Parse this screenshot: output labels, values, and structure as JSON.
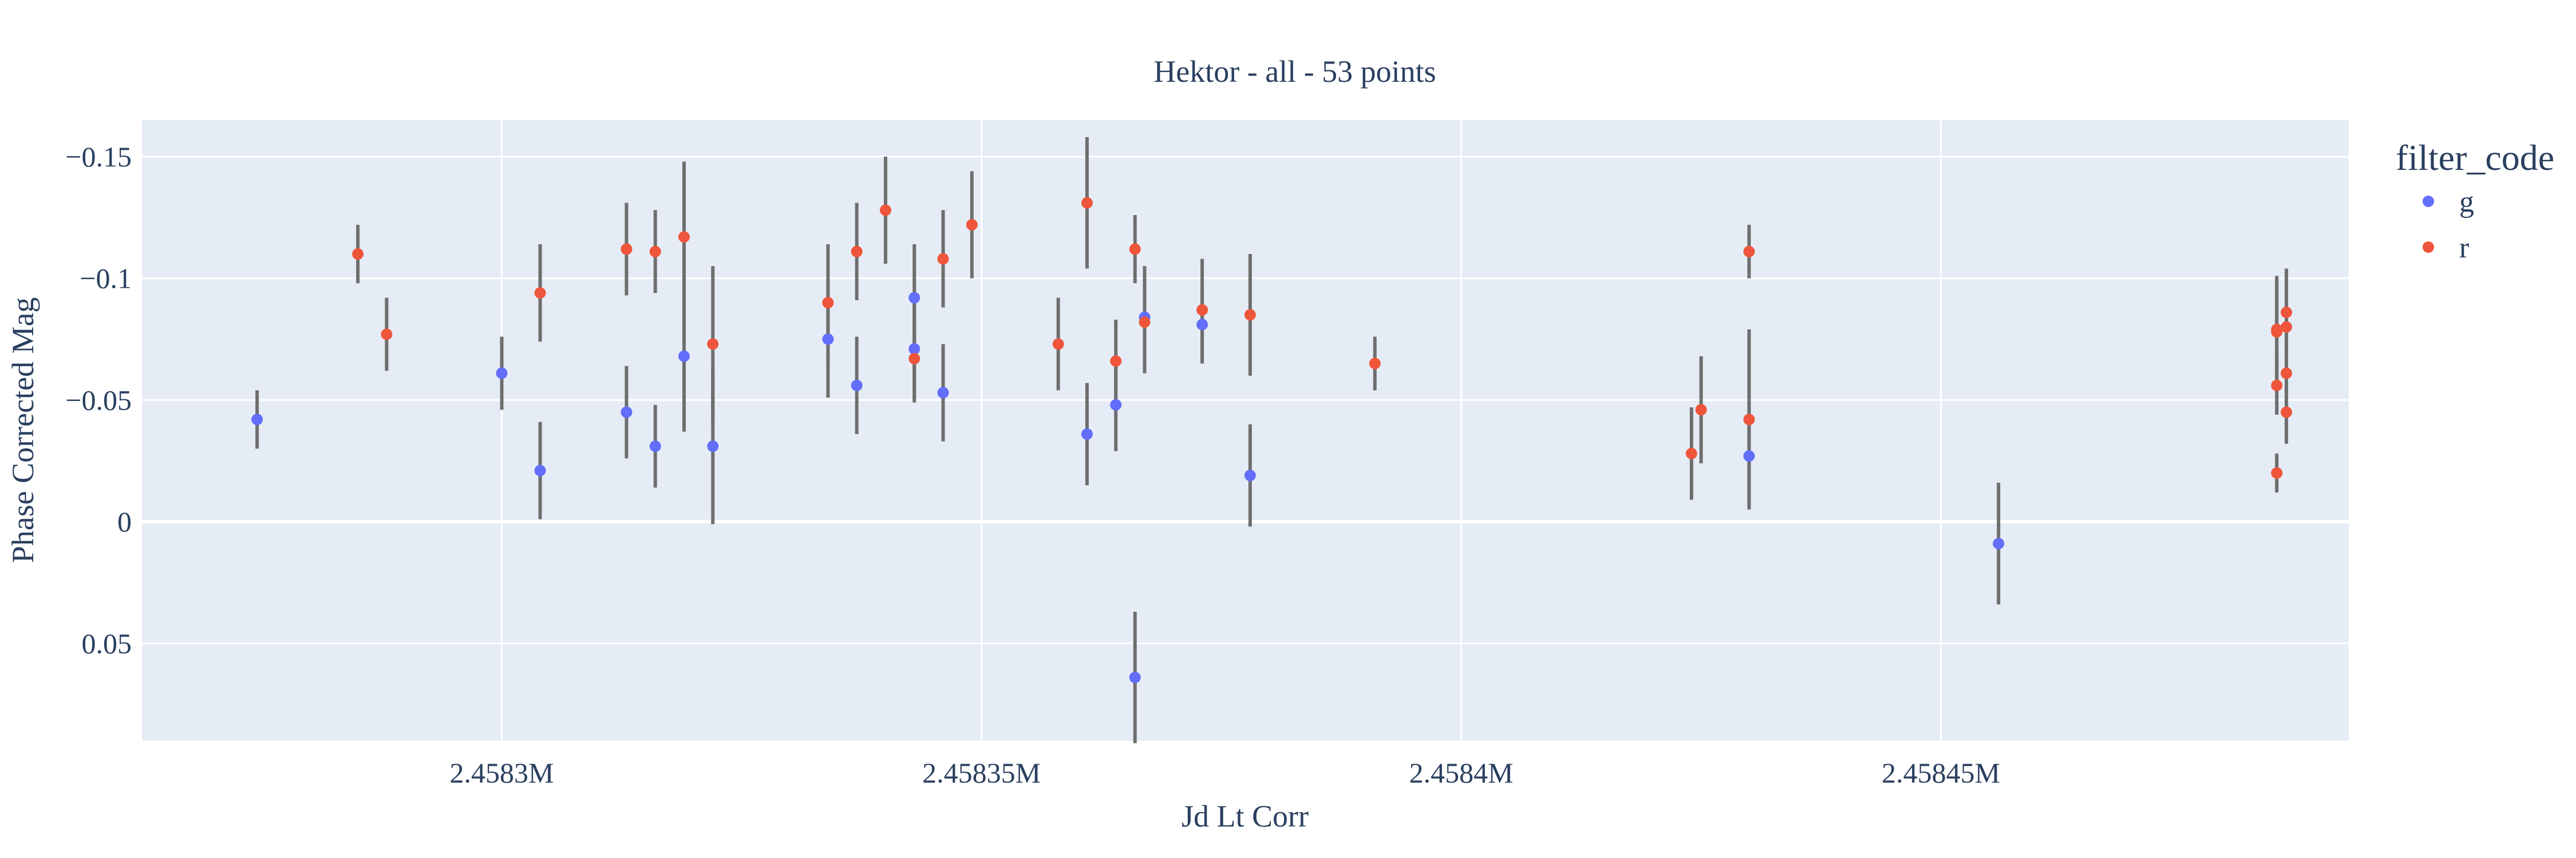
{
  "chart_data": {
    "type": "scatter",
    "title": "Hektor - all - 53 points",
    "xlabel": "Jd Lt Corr",
    "ylabel": "Phase Corrected Mag",
    "xlim": [
      2458262.5,
      2458492.5
    ],
    "ylim": [
      0.09,
      -0.165
    ],
    "y_reversed": true,
    "grid": true,
    "legend_position": "top-right-outside",
    "legend_title": "filter_code",
    "x_ticks": [
      {
        "value": 2458300,
        "label": "2.4583M"
      },
      {
        "value": 2458350,
        "label": "2.45835M"
      },
      {
        "value": 2458400,
        "label": "2.4584M"
      },
      {
        "value": 2458450,
        "label": "2.45845M"
      }
    ],
    "y_ticks": [
      {
        "value": -0.15,
        "label": "−0.15"
      },
      {
        "value": -0.1,
        "label": "−0.1"
      },
      {
        "value": -0.05,
        "label": "−0.05"
      },
      {
        "value": 0,
        "label": "0"
      },
      {
        "value": 0.05,
        "label": "0.05"
      }
    ],
    "series": [
      {
        "name": "g",
        "color": "#636efa",
        "points": [
          {
            "x": 2458274.5,
            "y": -0.042,
            "err": 0.012
          },
          {
            "x": 2458300.0,
            "y": -0.061,
            "err": 0.015
          },
          {
            "x": 2458304.0,
            "y": -0.021,
            "err": 0.02
          },
          {
            "x": 2458313.0,
            "y": -0.045,
            "err": 0.019
          },
          {
            "x": 2458316.0,
            "y": -0.031,
            "err": 0.017
          },
          {
            "x": 2458319.0,
            "y": -0.068,
            "err": 0.031
          },
          {
            "x": 2458322.0,
            "y": -0.031,
            "err": 0.032
          },
          {
            "x": 2458334.0,
            "y": -0.075,
            "err": 0.024
          },
          {
            "x": 2458337.0,
            "y": -0.056,
            "err": 0.02
          },
          {
            "x": 2458343.0,
            "y": -0.071,
            "err": 0.022
          },
          {
            "x": 2458343.0,
            "y": -0.092,
            "err": 0.022
          },
          {
            "x": 2458346.0,
            "y": -0.053,
            "err": 0.02
          },
          {
            "x": 2458361.0,
            "y": -0.036,
            "err": 0.021
          },
          {
            "x": 2458364.0,
            "y": -0.048,
            "err": 0.019
          },
          {
            "x": 2458366.0,
            "y": 0.064,
            "err": 0.027
          },
          {
            "x": 2458367.0,
            "y": -0.084,
            "err": 0.021
          },
          {
            "x": 2458373.0,
            "y": -0.081,
            "err": 0.016
          },
          {
            "x": 2458378.0,
            "y": -0.019,
            "err": 0.021
          },
          {
            "x": 2458430.0,
            "y": -0.027,
            "err": 0.021
          },
          {
            "x": 2458456.0,
            "y": 0.009,
            "err": 0.025
          }
        ]
      },
      {
        "name": "r",
        "color": "#ef553b",
        "points": [
          {
            "x": 2458285.0,
            "y": -0.11,
            "err": 0.012
          },
          {
            "x": 2458288.0,
            "y": -0.077,
            "err": 0.015
          },
          {
            "x": 2458304.0,
            "y": -0.094,
            "err": 0.02
          },
          {
            "x": 2458313.0,
            "y": -0.112,
            "err": 0.019
          },
          {
            "x": 2458316.0,
            "y": -0.111,
            "err": 0.017
          },
          {
            "x": 2458319.0,
            "y": -0.117,
            "err": 0.031
          },
          {
            "x": 2458322.0,
            "y": -0.073,
            "err": 0.032
          },
          {
            "x": 2458334.0,
            "y": -0.09,
            "err": 0.024
          },
          {
            "x": 2458337.0,
            "y": -0.111,
            "err": 0.02
          },
          {
            "x": 2458340.0,
            "y": -0.128,
            "err": 0.022
          },
          {
            "x": 2458343.0,
            "y": -0.067,
            "err": 0.017
          },
          {
            "x": 2458346.0,
            "y": -0.108,
            "err": 0.02
          },
          {
            "x": 2458349.0,
            "y": -0.122,
            "err": 0.022
          },
          {
            "x": 2458358.0,
            "y": -0.073,
            "err": 0.019
          },
          {
            "x": 2458361.0,
            "y": -0.131,
            "err": 0.027
          },
          {
            "x": 2458364.0,
            "y": -0.066,
            "err": 0.017
          },
          {
            "x": 2458366.0,
            "y": -0.112,
            "err": 0.014
          },
          {
            "x": 2458367.0,
            "y": -0.082,
            "err": 0.021
          },
          {
            "x": 2458373.0,
            "y": -0.087,
            "err": 0.021
          },
          {
            "x": 2458378.0,
            "y": -0.085,
            "err": 0.025
          },
          {
            "x": 2458391.0,
            "y": -0.065,
            "err": 0.011
          },
          {
            "x": 2458424.0,
            "y": -0.028,
            "err": 0.019
          },
          {
            "x": 2458425.0,
            "y": -0.046,
            "err": 0.022
          },
          {
            "x": 2458430.0,
            "y": -0.042,
            "err": 0.037
          },
          {
            "x": 2458430.0,
            "y": -0.111,
            "err": 0.011
          },
          {
            "x": 2458485.0,
            "y": -0.02,
            "err": 0.008
          },
          {
            "x": 2458485.0,
            "y": -0.056,
            "err": 0.012
          },
          {
            "x": 2458485.0,
            "y": -0.078,
            "err": 0.022
          },
          {
            "x": 2458485.0,
            "y": -0.079,
            "err": 0.022
          },
          {
            "x": 2458486.0,
            "y": -0.045,
            "err": 0.013
          },
          {
            "x": 2458486.0,
            "y": -0.061,
            "err": 0.014
          },
          {
            "x": 2458486.0,
            "y": -0.08,
            "err": 0.016
          },
          {
            "x": 2458486.0,
            "y": -0.086,
            "err": 0.018
          }
        ]
      }
    ]
  }
}
